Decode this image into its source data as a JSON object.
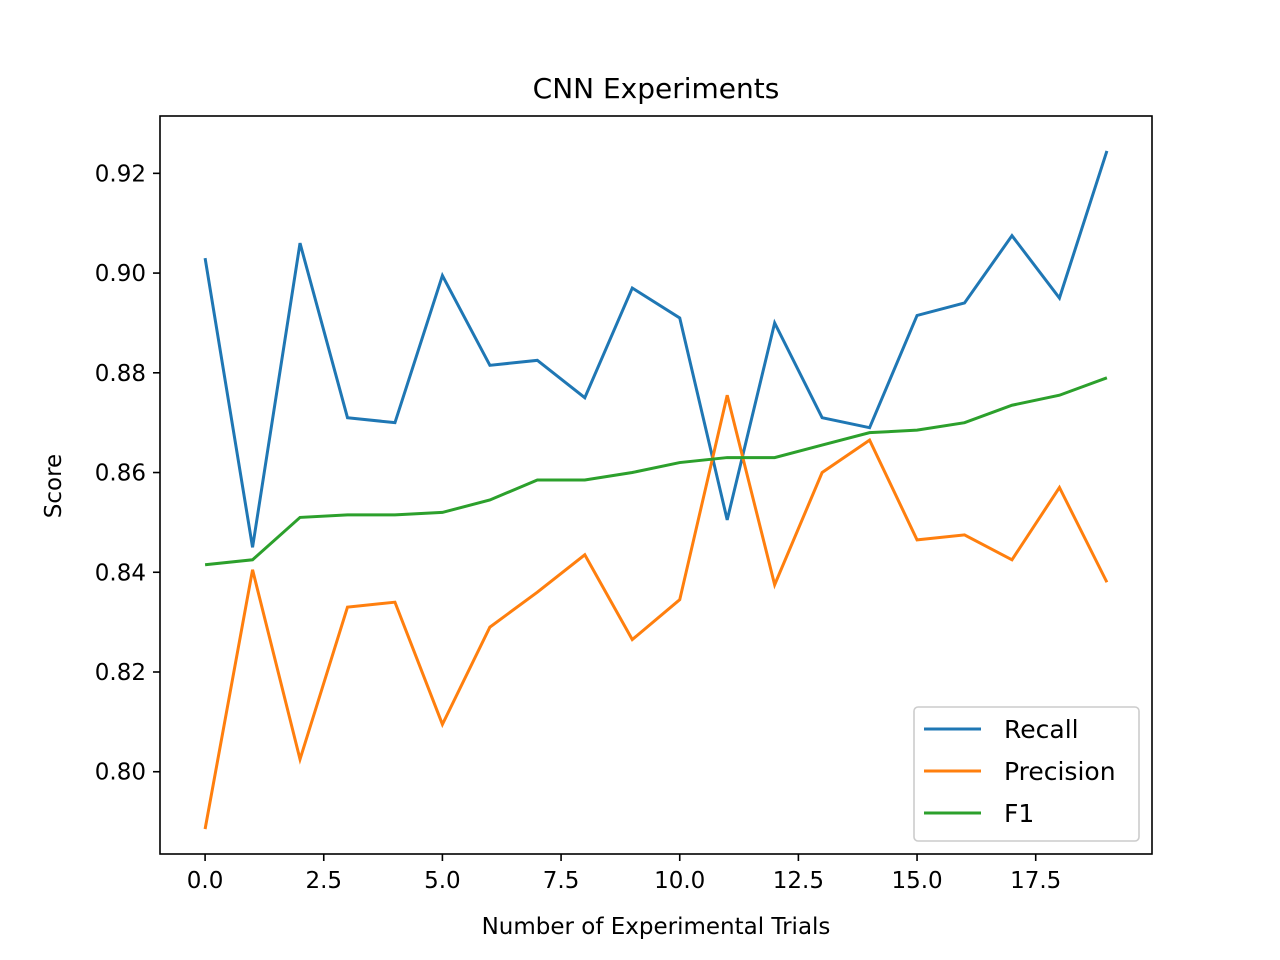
{
  "chart_data": {
    "type": "line",
    "title": "CNN Experiments",
    "xlabel": "Number of Experimental Trials",
    "ylabel": "Score",
    "xlim": [
      -0.95,
      19.95
    ],
    "ylim": [
      0.7835,
      0.9315
    ],
    "xticks": [
      0.0,
      2.5,
      5.0,
      7.5,
      10.0,
      12.5,
      15.0,
      17.5
    ],
    "xtick_labels": [
      "0.0",
      "2.5",
      "5.0",
      "7.5",
      "10.0",
      "12.5",
      "15.0",
      "17.5"
    ],
    "yticks": [
      0.8,
      0.82,
      0.84,
      0.86,
      0.88,
      0.9,
      0.92
    ],
    "ytick_labels": [
      "0.80",
      "0.82",
      "0.84",
      "0.86",
      "0.88",
      "0.90",
      "0.92"
    ],
    "grid": false,
    "legend_position": "lower right",
    "x": [
      0,
      1,
      2,
      3,
      4,
      5,
      6,
      7,
      8,
      9,
      10,
      11,
      12,
      13,
      14,
      15,
      16,
      17,
      18,
      19
    ],
    "series": [
      {
        "name": "Recall",
        "color": "#1f77b4",
        "values": [
          0.903,
          0.845,
          0.906,
          0.871,
          0.87,
          0.8995,
          0.8815,
          0.8825,
          0.875,
          0.897,
          0.891,
          0.8505,
          0.89,
          0.871,
          0.869,
          0.8915,
          0.894,
          0.9075,
          0.895,
          0.9245
        ]
      },
      {
        "name": "Precision",
        "color": "#ff7f0e",
        "values": [
          0.7885,
          0.8405,
          0.8025,
          0.833,
          0.834,
          0.8095,
          0.829,
          0.836,
          0.8435,
          0.8265,
          0.8345,
          0.8755,
          0.8375,
          0.86,
          0.8665,
          0.8465,
          0.8475,
          0.8425,
          0.857,
          0.838
        ]
      },
      {
        "name": "F1",
        "color": "#2ca02c",
        "values": [
          0.8415,
          0.8425,
          0.851,
          0.8515,
          0.8515,
          0.852,
          0.8545,
          0.8585,
          0.8585,
          0.86,
          0.862,
          0.863,
          0.863,
          0.8655,
          0.868,
          0.8685,
          0.87,
          0.8735,
          0.8755,
          0.879
        ]
      }
    ]
  }
}
